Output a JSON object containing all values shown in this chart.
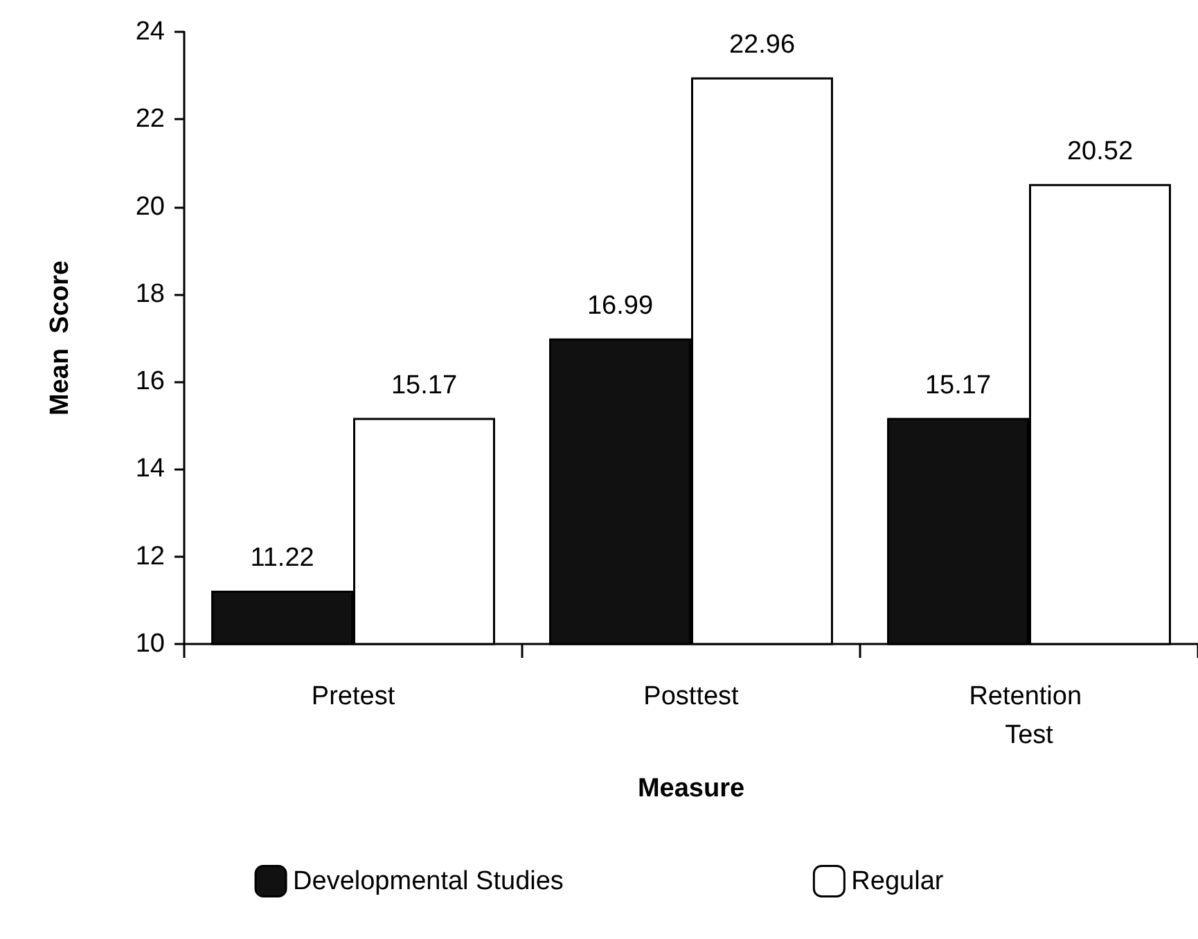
{
  "chart_data": {
    "type": "bar",
    "xlabel": "Measure",
    "ylabel": "Mean  Score",
    "categories": [
      "Pretest",
      "Posttest",
      "Retention Test"
    ],
    "series": [
      {
        "name": "Developmental Studies",
        "color": "#111111",
        "values": [
          11.22,
          16.99,
          15.17
        ]
      },
      {
        "name": "Regular",
        "color": "#ffffff",
        "values": [
          15.17,
          22.96,
          20.52
        ]
      }
    ],
    "ylim": [
      10,
      24
    ],
    "yticks": [
      10,
      12,
      14,
      16,
      18,
      20,
      22,
      24
    ],
    "grid": false,
    "legend": "bottom",
    "data_labels": true
  }
}
